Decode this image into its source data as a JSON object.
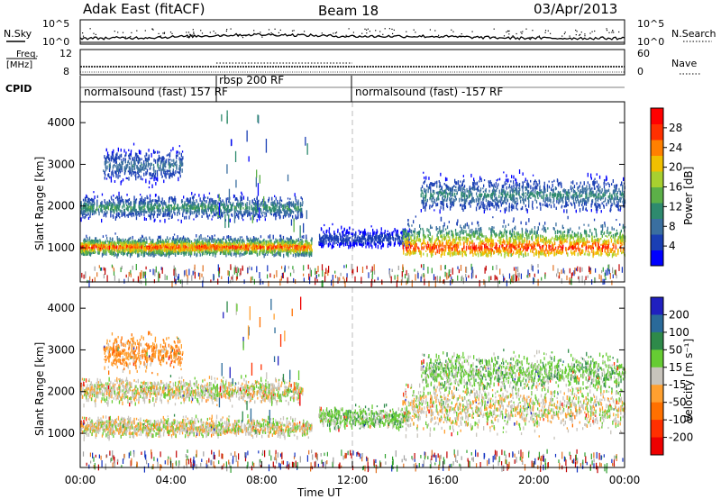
{
  "header": {
    "station": "Adak East (fitACF)",
    "beam": "Beam 18",
    "date": "03/Apr/2013"
  },
  "panels": {
    "nsky": {
      "label": "N.Sky",
      "ticks": [
        "10^5",
        "10^0"
      ],
      "right_ticks": [
        "10^5",
        "10^0"
      ],
      "right_label": "N.Search"
    },
    "freq": {
      "label_line1": "Freq.",
      "label_line2": "[MHz]",
      "ticks": [
        "12",
        "8"
      ],
      "right_ticks": [
        "60",
        "0"
      ],
      "right_label": "Nave"
    },
    "cpid": {
      "label": "CPID",
      "segments": [
        {
          "text": "normalsound (fast) 157 RF",
          "start_hour": 0,
          "end_hour": 6
        },
        {
          "text": "rbsp 200 RF",
          "start_hour": 6,
          "end_hour": 12
        },
        {
          "text": "normalsound (fast) -157 RF",
          "start_hour": 12,
          "end_hour": 24
        }
      ]
    }
  },
  "colors": {
    "power_scale": [
      "#0000ff",
      "#1a3fb4",
      "#3a6fa0",
      "#2e8a6e",
      "#5cb048",
      "#a8d030",
      "#f0c000",
      "#ff8000",
      "#ff3000",
      "#ff0000"
    ],
    "velocity_scale": [
      "#2020c0",
      "#2a6a9a",
      "#2e8a4a",
      "#66cc33",
      "#c8c4bc",
      "#ffa030",
      "#ff7000",
      "#ff3000",
      "#ee0000"
    ],
    "noise": [
      "#c00000",
      "#e07020",
      "#30a030",
      "#1030c0",
      "#a0a0a0"
    ]
  },
  "chart_data": [
    {
      "type": "heatmap",
      "name": "Power",
      "xlabel": "",
      "ylabel": "Slant Range [km]",
      "xlim": [
        0,
        24
      ],
      "ylim": [
        180,
        4500
      ],
      "yticks": [
        "1000",
        "2000",
        "3000",
        "4000"
      ],
      "colorbar": {
        "label": "Power [dB]",
        "ticks": [
          "4",
          "8",
          "12",
          "16",
          "20",
          "24",
          "28"
        ],
        "range": [
          0,
          30
        ]
      },
      "bands": [
        {
          "t_start": 0.0,
          "t_end": 10.2,
          "range_km": [
            850,
            1500
          ],
          "core_km": 1050,
          "max_db": 30
        },
        {
          "t_start": 0.0,
          "t_end": 9.8,
          "range_km": [
            1650,
            2450
          ],
          "core_km": 2000,
          "max_db": 14
        },
        {
          "t_start": 1.0,
          "t_end": 4.5,
          "range_km": [
            2400,
            3550
          ],
          "core_km": 3000,
          "max_db": 10
        },
        {
          "t_start": 10.5,
          "t_end": 14.5,
          "range_km": [
            1050,
            1750
          ],
          "core_km": 1250,
          "max_db": 6
        },
        {
          "t_start": 14.2,
          "t_end": 24.0,
          "range_km": [
            850,
            2450
          ],
          "core_km": 1050,
          "max_db": 30
        },
        {
          "t_start": 15.0,
          "t_end": 24.0,
          "range_km": [
            1900,
            3100
          ],
          "core_km": 2300,
          "max_db": 12
        }
      ]
    },
    {
      "type": "heatmap",
      "name": "Velocity",
      "xlabel": "Time UT",
      "ylabel": "Slant Range [km]",
      "xlim": [
        0,
        24
      ],
      "ylim": [
        180,
        4500
      ],
      "xticks": [
        "00:00",
        "04:00",
        "08:00",
        "12:00",
        "16:00",
        "20:00",
        "00:00"
      ],
      "yticks": [
        "1000",
        "2000",
        "3000",
        "4000"
      ],
      "colorbar": {
        "label": "Velocity [m s⁻¹]",
        "ticks": [
          "200",
          "100",
          "50",
          "15",
          "-15",
          "-50",
          "-100",
          "-200"
        ],
        "range": [
          -250,
          250
        ]
      },
      "bands": [
        {
          "t_start": 0.0,
          "t_end": 10.2,
          "range_km": [
            850,
            1500
          ],
          "dominant_velocity": 0
        },
        {
          "t_start": 0.0,
          "t_end": 9.8,
          "range_km": [
            1650,
            2450
          ],
          "dominant_velocity": 0
        },
        {
          "t_start": 1.0,
          "t_end": 4.5,
          "range_km": [
            2400,
            3550
          ],
          "dominant_velocity": -40
        },
        {
          "t_start": 10.5,
          "t_end": 14.5,
          "range_km": [
            1050,
            1750
          ],
          "dominant_velocity": 30
        },
        {
          "t_start": 14.2,
          "t_end": 24.0,
          "range_km": [
            850,
            2450
          ],
          "dominant_velocity": 0
        },
        {
          "t_start": 15.0,
          "t_end": 24.0,
          "range_km": [
            1900,
            3100
          ],
          "dominant_velocity": 30
        }
      ]
    }
  ]
}
